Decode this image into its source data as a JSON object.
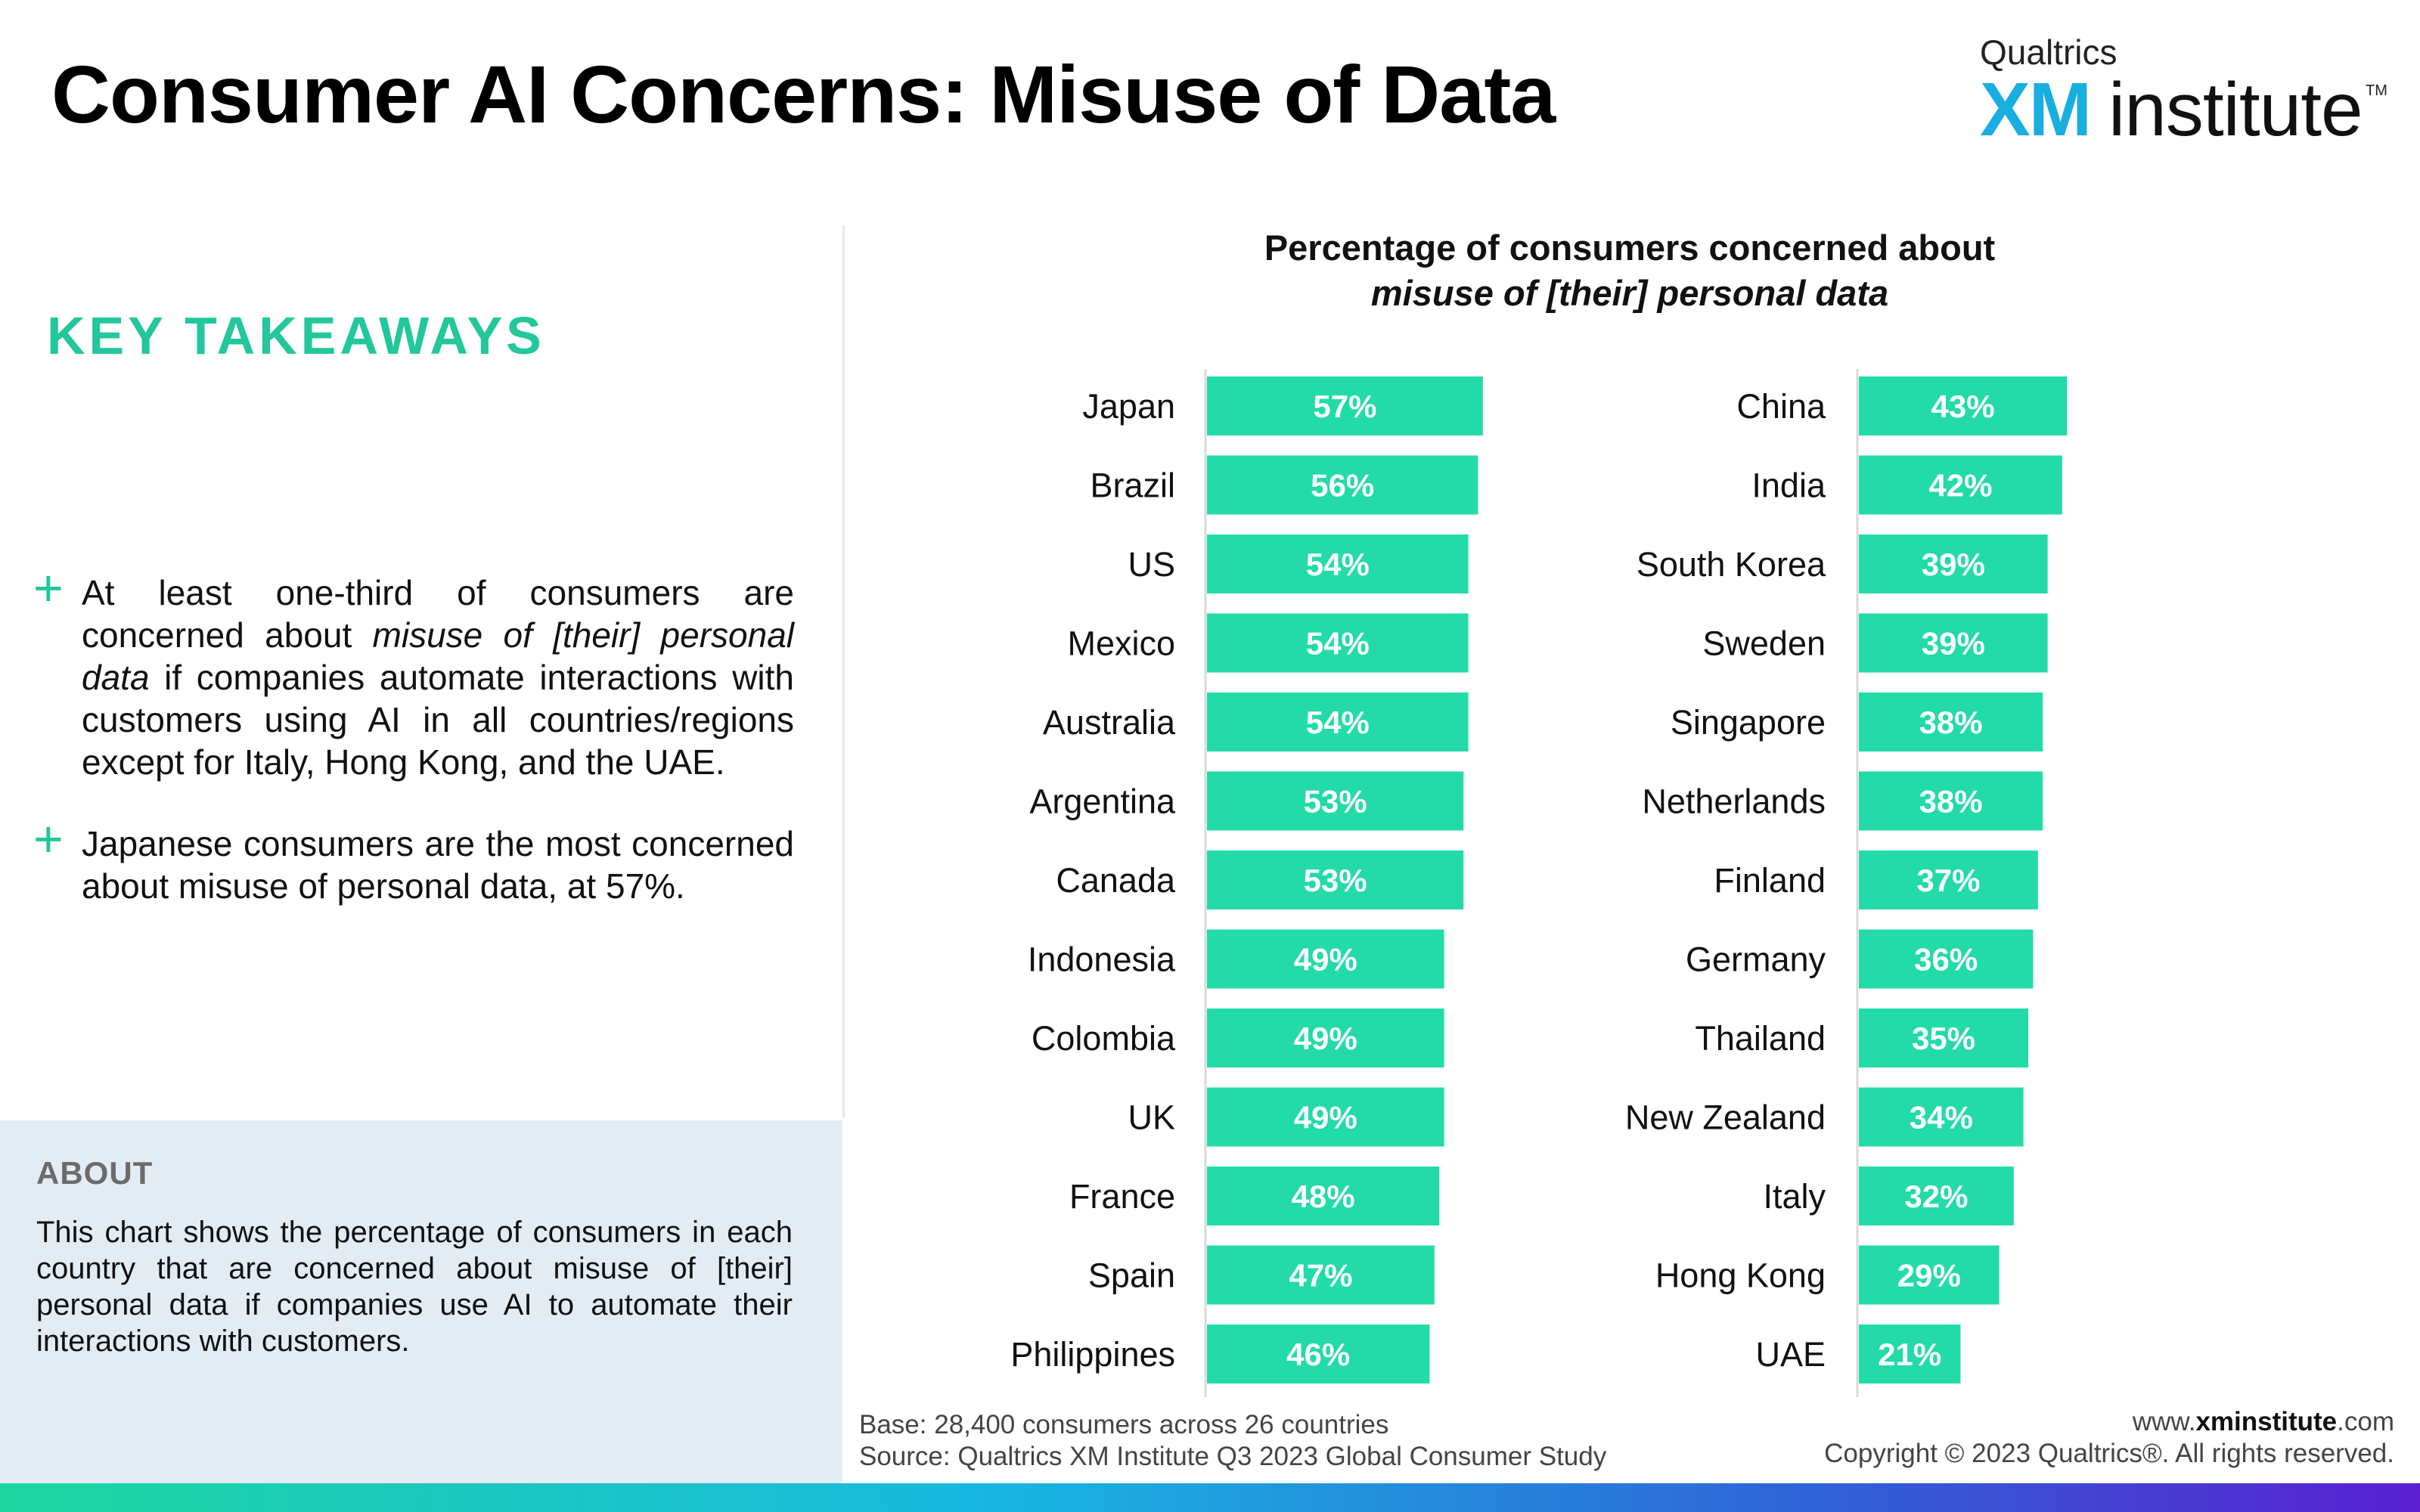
{
  "header": {
    "title": "Consumer AI Concerns: Misuse of Data",
    "logo_top": "Qualtrics",
    "logo_xm": "XM",
    "logo_institute": "institute",
    "logo_tm": "TM"
  },
  "left": {
    "key_takeaways_title": "KEY TAKEAWAYS",
    "bullets": [
      {
        "pre": "At least one-third of consumers are concerned about ",
        "em": "misuse of [their] personal data",
        "post": " if companies automate interactions with customers using AI in all countries/regions except for Italy, Hong Kong, and the UAE."
      },
      {
        "text": "Japanese consumers are the most concerned about misuse of personal data, at 57%."
      }
    ],
    "about_title": "ABOUT",
    "about_text": "This chart shows the percentage of consumers in each country that are concerned about misuse of [their] personal data if companies use AI to automate their interactions with customers."
  },
  "chart_data": {
    "type": "bar",
    "orientation": "horizontal",
    "title": "Percentage of consumers concerned about",
    "subtitle": "misuse of [their] personal data",
    "xlim": [
      0,
      100
    ],
    "unit": "%",
    "bar_color": "#22dba9",
    "label_color": "#ffffff",
    "panels": [
      {
        "categories": [
          "Japan",
          "Brazil",
          "US",
          "Mexico",
          "Australia",
          "Argentina",
          "Canada",
          "Indonesia",
          "Colombia",
          "UK",
          "France",
          "Spain",
          "Philippines"
        ],
        "values": [
          57,
          56,
          54,
          54,
          54,
          53,
          53,
          49,
          49,
          49,
          48,
          47,
          46
        ]
      },
      {
        "categories": [
          "China",
          "India",
          "South Korea",
          "Sweden",
          "Singapore",
          "Netherlands",
          "Finland",
          "Germany",
          "Thailand",
          "New Zealand",
          "Italy",
          "Hong Kong",
          "UAE"
        ],
        "values": [
          43,
          42,
          39,
          39,
          38,
          38,
          37,
          36,
          35,
          34,
          32,
          29,
          21
        ]
      }
    ]
  },
  "footer": {
    "base": "Base: 28,400 consumers across 26 countries",
    "source": "Source: Qualtrics XM Institute Q3 2023 Global Consumer Study",
    "site_pre": "www.",
    "site_bold": "xminstitute",
    "site_post": ".com",
    "copyright": "Copyright © 2023 Qualtrics®. All rights reserved."
  }
}
